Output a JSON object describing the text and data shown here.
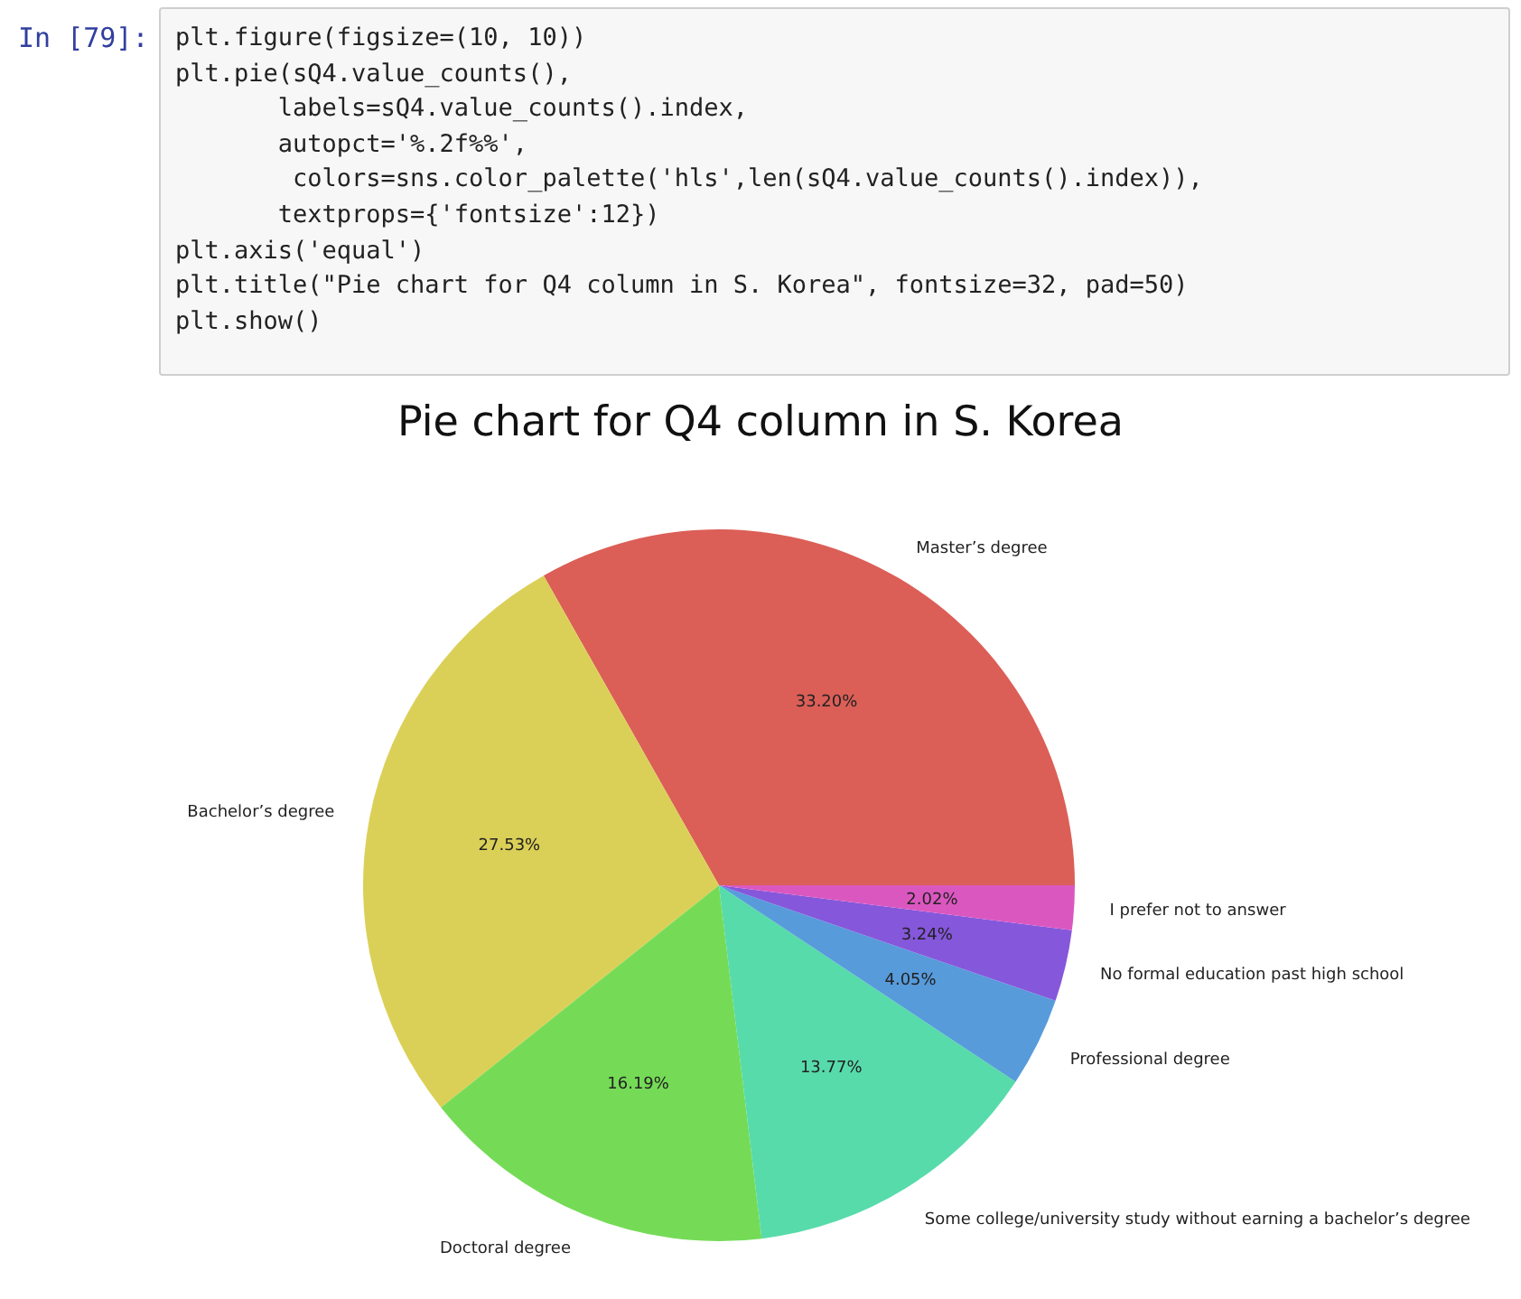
{
  "chart_data": {
    "type": "pie",
    "title": "Pie chart for Q4 column in S. Korea",
    "categories": [
      "Master’s degree",
      "Bachelor’s degree",
      "Doctoral degree",
      "Some college/university study without earning a bachelor’s degree",
      "Professional degree",
      "No formal education past high school",
      "I prefer not to answer"
    ],
    "values": [
      33.2,
      27.53,
      16.19,
      13.77,
      4.05,
      3.24,
      2.02
    ],
    "value_labels": [
      "33.20%",
      "27.53%",
      "16.19%",
      "13.77%",
      "4.05%",
      "3.24%",
      "2.02%"
    ],
    "colors": [
      "#db5f57",
      "#dbd057",
      "#75db57",
      "#57dbaa",
      "#579bdb",
      "#8557db",
      "#db57c0"
    ],
    "legend": false,
    "annotations": [
      "In [79]:",
      "plt.figure(figsize=(10, 10))",
      "plt.pie(sQ4.value_counts(),",
      "       labels=sQ4.value_counts().index,",
      "       autopct='%.2f%%',",
      "        colors=sns.color_palette('hls',len(sQ4.value_counts().index)),",
      "       textprops={'fontsize':12})",
      "plt.axis('equal')",
      "plt.title(\"Pie chart for Q4 column in S. Korea\", fontsize=32, pad=50)",
      "plt.show()"
    ]
  }
}
